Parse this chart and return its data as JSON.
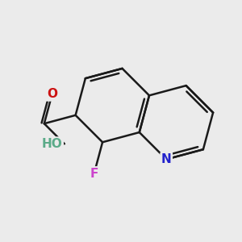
{
  "background_color": "#ebebeb",
  "bond_color": "#1a1a1a",
  "bond_width": 1.8,
  "figsize": [
    3.0,
    3.0
  ],
  "dpi": 100,
  "colors": {
    "N": "#2222cc",
    "O": "#cc1111",
    "HO": "#5aaa88",
    "F": "#cc44cc"
  },
  "fontsize": 11
}
